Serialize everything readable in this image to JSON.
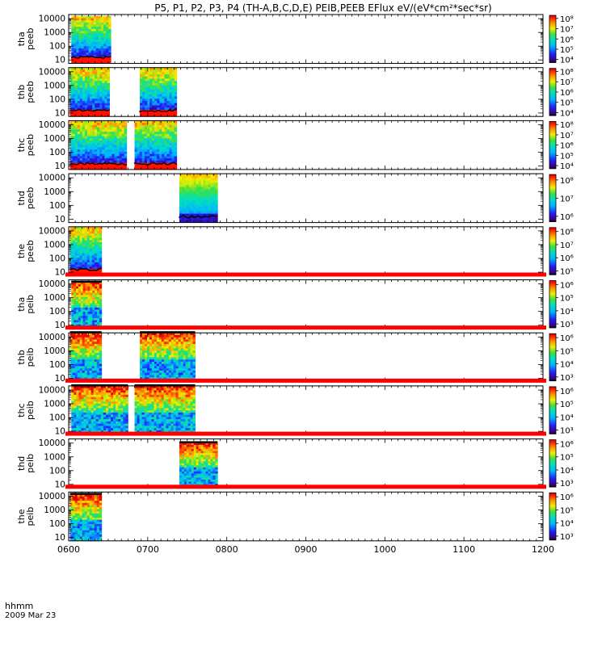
{
  "chart_data": {
    "type": "heatmap",
    "title": "P5, P1, P2, P3, P4 (TH-A,B,C,D,E) PEIB,PEEB EFlux eV/(eV*cm²*sec*sr)",
    "date_label": "2009 Mar 23",
    "time_label": "hhmm",
    "x_ticks": [
      "0600",
      "0700",
      "0800",
      "0900",
      "1000",
      "1100",
      "1200"
    ],
    "xlim": [
      "0600",
      "1200"
    ],
    "y_scale": "log",
    "panels": [
      {
        "label_top": "tha",
        "label_bottom": "peeb",
        "y_ticks": [
          "10",
          "100",
          "1000",
          "10000"
        ],
        "colorbar_ticks": [
          "10⁴",
          "10⁵",
          "10⁶",
          "10⁷",
          "10⁸"
        ],
        "colorbar_exponents": [
          4,
          5,
          6,
          7,
          8
        ],
        "redbar": false,
        "segments": [
          {
            "start": "06:02",
            "end": "06:32",
            "kind": "electron",
            "top_frac": 0.97
          }
        ]
      },
      {
        "label_top": "thb",
        "label_bottom": "peeb",
        "y_ticks": [
          "10",
          "100",
          "1000",
          "10000"
        ],
        "colorbar_ticks": [
          "10⁴",
          "10⁵",
          "10⁶",
          "10⁷",
          "10⁸"
        ],
        "colorbar_exponents": [
          4,
          5,
          6,
          7,
          8
        ],
        "redbar": false,
        "segments": [
          {
            "start": "06:01",
            "end": "06:31",
            "kind": "electron",
            "top_frac": 1.0
          },
          {
            "start": "06:54",
            "end": "07:22",
            "kind": "electron",
            "top_frac": 1.0
          }
        ]
      },
      {
        "label_top": "thc",
        "label_bottom": "peeb",
        "y_ticks": [
          "10",
          "100",
          "1000",
          "10000"
        ],
        "colorbar_ticks": [
          "10⁴",
          "10⁵",
          "10⁶",
          "10⁷",
          "10⁸"
        ],
        "colorbar_exponents": [
          4,
          5,
          6,
          7,
          8
        ],
        "redbar": false,
        "segments": [
          {
            "start": "06:01",
            "end": "06:44",
            "kind": "electron",
            "top_frac": 1.0
          },
          {
            "start": "06:50",
            "end": "07:22",
            "kind": "electron",
            "top_frac": 1.0
          }
        ]
      },
      {
        "label_top": "thd",
        "label_bottom": "peeb",
        "y_ticks": [
          "10",
          "100",
          "1000",
          "10000"
        ],
        "colorbar_ticks": [
          "10⁶",
          "10⁷",
          "10⁸"
        ],
        "colorbar_exponents": [
          6,
          7,
          8
        ],
        "redbar": false,
        "segments": [
          {
            "start": "07:24",
            "end": "07:53",
            "kind": "electron-thd",
            "top_frac": 1.0
          }
        ]
      },
      {
        "label_top": "the",
        "label_bottom": "peeb",
        "y_ticks": [
          "10",
          "100",
          "1000",
          "10000"
        ],
        "colorbar_ticks": [
          "10⁵",
          "10⁶",
          "10⁷",
          "10⁸"
        ],
        "colorbar_exponents": [
          5,
          6,
          7,
          8
        ],
        "redbar": false,
        "segments": [
          {
            "start": "06:01",
            "end": "06:25",
            "kind": "electron",
            "top_frac": 1.0
          }
        ]
      },
      {
        "label_top": "tha",
        "label_bottom": "peib",
        "y_ticks": [
          "10",
          "100",
          "1000",
          "10000"
        ],
        "colorbar_ticks": [
          "10³",
          "10⁴",
          "10⁵",
          "10⁶"
        ],
        "colorbar_exponents": [
          3,
          4,
          5,
          6
        ],
        "redbar": true,
        "segments": [
          {
            "start": "06:02",
            "end": "06:25",
            "kind": "ion",
            "top_frac": 0.95
          }
        ]
      },
      {
        "label_top": "thb",
        "label_bottom": "peib",
        "y_ticks": [
          "10",
          "100",
          "1000",
          "10000"
        ],
        "colorbar_ticks": [
          "10³",
          "10⁴",
          "10⁵",
          "10⁶"
        ],
        "colorbar_exponents": [
          3,
          4,
          5,
          6
        ],
        "redbar": true,
        "segments": [
          {
            "start": "06:01",
            "end": "06:25",
            "kind": "ion",
            "top_frac": 1.0
          },
          {
            "start": "06:54",
            "end": "07:36",
            "kind": "ion",
            "top_frac": 1.0
          }
        ]
      },
      {
        "label_top": "thc",
        "label_bottom": "peib",
        "y_ticks": [
          "10",
          "100",
          "1000",
          "10000"
        ],
        "colorbar_ticks": [
          "10³",
          "10⁴",
          "10⁵",
          "10⁶"
        ],
        "colorbar_exponents": [
          3,
          4,
          5,
          6
        ],
        "redbar": true,
        "segments": [
          {
            "start": "06:02",
            "end": "06:45",
            "kind": "ion",
            "top_frac": 1.0
          },
          {
            "start": "06:50",
            "end": "07:36",
            "kind": "ion",
            "top_frac": 1.0
          }
        ]
      },
      {
        "label_top": "thd",
        "label_bottom": "peib",
        "y_ticks": [
          "10",
          "100",
          "1000",
          "10000"
        ],
        "colorbar_ticks": [
          "10³",
          "10⁴",
          "10⁵",
          "10⁶"
        ],
        "colorbar_exponents": [
          3,
          4,
          5,
          6
        ],
        "redbar": true,
        "segments": [
          {
            "start": "07:24",
            "end": "07:53",
            "kind": "ion",
            "top_frac": 0.92
          }
        ]
      },
      {
        "label_top": "the",
        "label_bottom": "peib",
        "y_ticks": [
          "10",
          "100",
          "1000",
          "10000"
        ],
        "colorbar_ticks": [
          "10³",
          "10⁴",
          "10⁵",
          "10⁶"
        ],
        "colorbar_exponents": [
          3,
          4,
          5,
          6
        ],
        "redbar": true,
        "segments": [
          {
            "start": "06:01",
            "end": "06:25",
            "kind": "ion",
            "top_frac": 0.95
          }
        ]
      }
    ]
  }
}
